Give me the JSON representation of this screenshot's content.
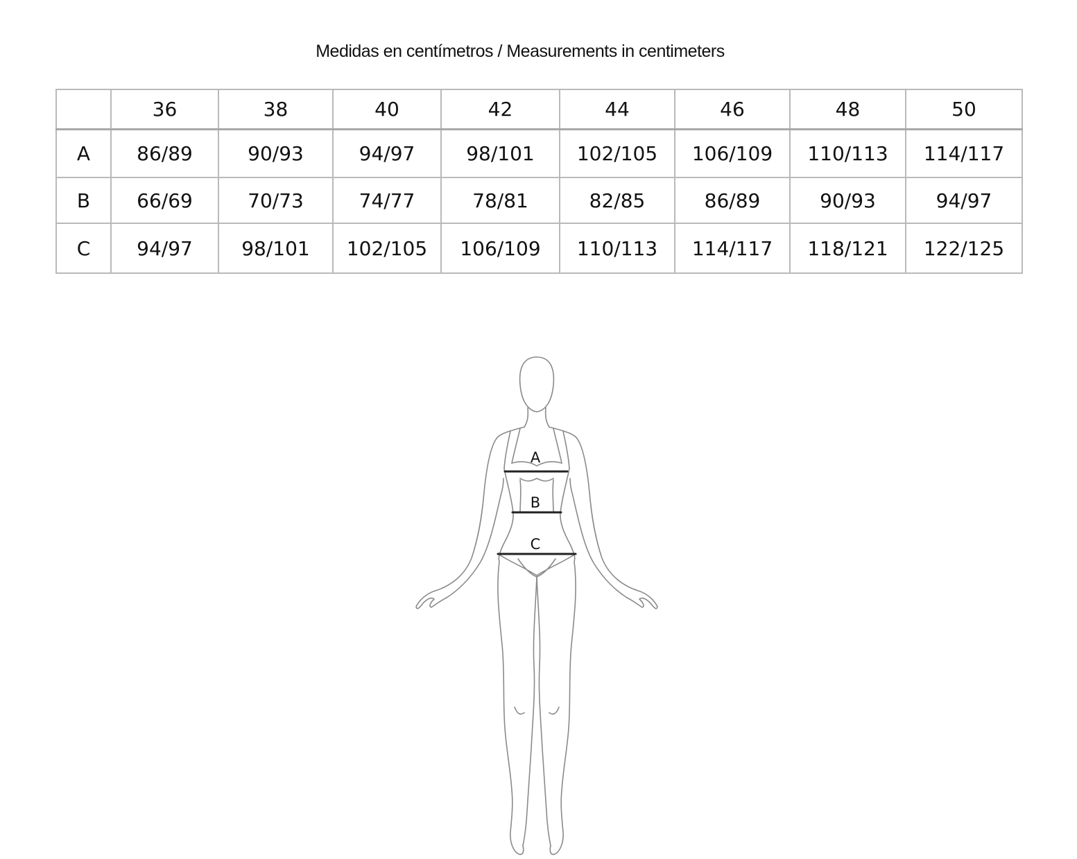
{
  "title": "Medidas en centímetros / Measurements in centimeters",
  "table": {
    "corner": "",
    "sizes": [
      "36",
      "38",
      "40",
      "42",
      "44",
      "46",
      "48",
      "50"
    ],
    "rows": [
      {
        "label": "A",
        "values": [
          "86/89",
          "90/93",
          "94/97",
          "98/101",
          "102/105",
          "106/109",
          "110/113",
          "114/117"
        ]
      },
      {
        "label": "B",
        "values": [
          "66/69",
          "70/73",
          "74/77",
          "78/81",
          "82/85",
          "86/89",
          "90/93",
          "94/97"
        ]
      },
      {
        "label": "C",
        "values": [
          "94/97",
          "98/101",
          "102/105",
          "106/109",
          "110/113",
          "114/117",
          "118/121",
          "122/125"
        ]
      }
    ]
  },
  "figure": {
    "labels": {
      "a": "A",
      "b": "B",
      "c": "C"
    },
    "line_color": "#8a8a8a",
    "measure_color": "#222222"
  }
}
